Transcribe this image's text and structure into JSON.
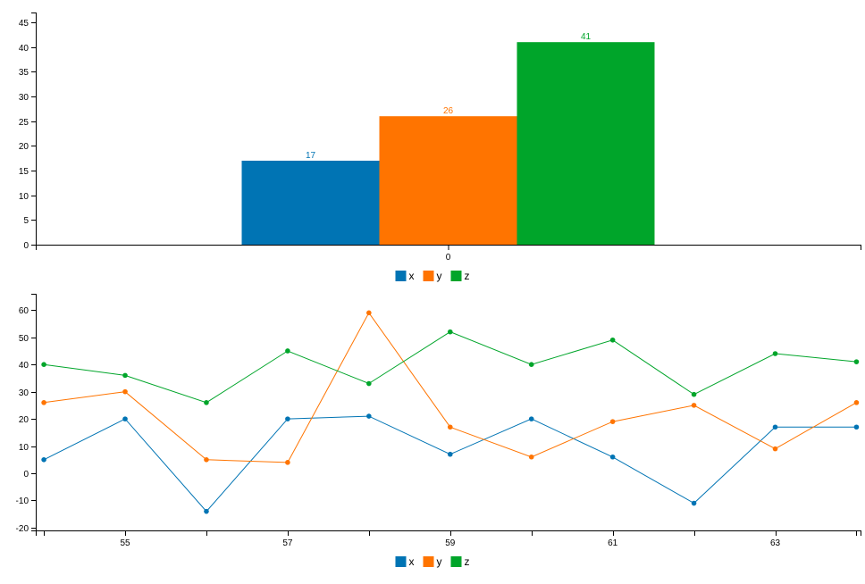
{
  "chart_data": [
    {
      "type": "bar",
      "categories": [
        "0"
      ],
      "series": [
        {
          "name": "x",
          "values": [
            17
          ]
        },
        {
          "name": "y",
          "values": [
            26
          ]
        },
        {
          "name": "z",
          "values": [
            41
          ]
        }
      ],
      "ylim": [
        0,
        47
      ],
      "yticks": [
        0,
        5,
        10,
        15,
        20,
        25,
        30,
        35,
        40,
        45
      ],
      "data_labels": true,
      "grid": false,
      "legend": "bottom-center"
    },
    {
      "type": "line",
      "x": [
        54,
        55,
        56,
        57,
        58,
        59,
        60,
        61,
        62,
        63,
        64
      ],
      "series": [
        {
          "name": "x",
          "values": [
            5,
            20,
            -14,
            20,
            21,
            7,
            20,
            6,
            -11,
            17,
            17
          ]
        },
        {
          "name": "y",
          "values": [
            26,
            30,
            5,
            4,
            59,
            17,
            6,
            19,
            25,
            9,
            26
          ]
        },
        {
          "name": "z",
          "values": [
            40,
            36,
            26,
            45,
            33,
            52,
            40,
            49,
            29,
            44,
            41
          ]
        }
      ],
      "xlim": [
        53.9,
        64.05
      ],
      "ylim": [
        -21,
        66
      ],
      "xtick_labels": [
        55,
        57,
        59,
        61,
        63
      ],
      "yticks": [
        -20,
        -10,
        0,
        10,
        20,
        30,
        40,
        50,
        60
      ],
      "grid": false,
      "legend": "bottom-center"
    }
  ],
  "colors": {
    "x": "#0074b4",
    "y": "#ff7400",
    "z": "#00a52a"
  },
  "legend": {
    "items": [
      "x",
      "y",
      "z"
    ]
  }
}
